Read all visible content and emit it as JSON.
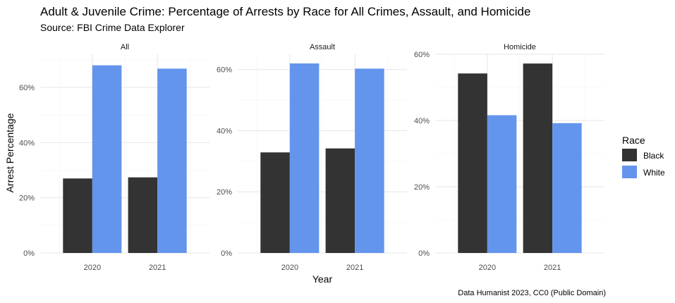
{
  "title": "Adult & Juvenile Crime: Percentage of Arrests by Race for All Crimes, Assault, and Homicide",
  "subtitle": "Source: FBI Crime Data Explorer",
  "caption": "Data Humanist 2023, CC0 (Public Domain)",
  "legend": {
    "title": "Race",
    "items": [
      {
        "label": "Black",
        "color": "#333333"
      },
      {
        "label": "White",
        "color": "#6495ED"
      }
    ]
  },
  "chart_data": {
    "type": "bar",
    "xlabel": "Year",
    "ylabel": "Arrest Percentage",
    "legend_position": "right",
    "grid": true,
    "facet_scales": "free_y",
    "panels": [
      {
        "name": "All",
        "categories": [
          "2020",
          "2021"
        ],
        "ylim": [
          0,
          0.72
        ],
        "yticks": [
          0,
          0.2,
          0.4,
          0.6
        ],
        "ytick_labels": [
          "0%",
          "20%",
          "40%",
          "60%"
        ],
        "series": [
          {
            "name": "Black",
            "values": [
              0.27,
              0.274
            ]
          },
          {
            "name": "White",
            "values": [
              0.68,
              0.668
            ]
          }
        ]
      },
      {
        "name": "Assault",
        "categories": [
          "2020",
          "2021"
        ],
        "ylim": [
          0,
          0.65
        ],
        "yticks": [
          0,
          0.2,
          0.4,
          0.6
        ],
        "ytick_labels": [
          "0%",
          "20%",
          "40%",
          "60%"
        ],
        "series": [
          {
            "name": "Black",
            "values": [
              0.329,
              0.342
            ]
          },
          {
            "name": "White",
            "values": [
              0.62,
              0.603
            ]
          }
        ]
      },
      {
        "name": "Homicide",
        "categories": [
          "2020",
          "2021"
        ],
        "ylim": [
          0,
          0.6
        ],
        "yticks": [
          0,
          0.2,
          0.4,
          0.6
        ],
        "ytick_labels": [
          "0%",
          "20%",
          "40%",
          "60%"
        ],
        "series": [
          {
            "name": "Black",
            "values": [
              0.542,
              0.572
            ]
          },
          {
            "name": "White",
            "values": [
              0.416,
              0.392
            ]
          }
        ]
      }
    ]
  }
}
